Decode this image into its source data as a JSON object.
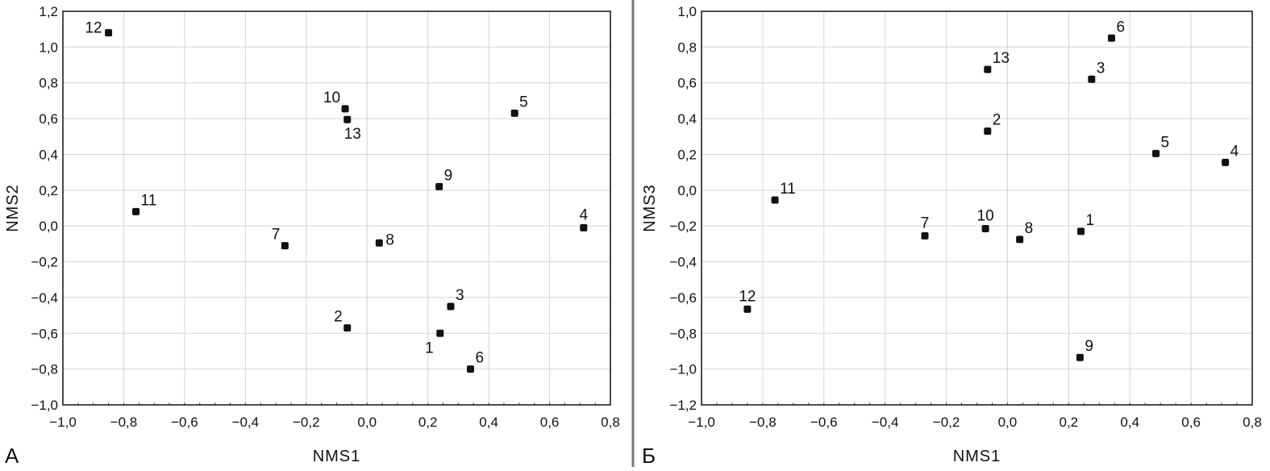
{
  "chart_data": [
    {
      "type": "scatter",
      "panel_label": "А",
      "xlabel": "NMS1",
      "ylabel": "NMS2",
      "xlim": [
        -1.0,
        0.8
      ],
      "ylim": [
        -1.0,
        1.2
      ],
      "xticks": [
        "-1,0",
        "-0,8",
        "-0,6",
        "-0,4",
        "-0,2",
        "0,0",
        "0,2",
        "0,4",
        "0,6",
        "0,8"
      ],
      "yticks": [
        "-1,0",
        "-0,8",
        "-0,6",
        "-0,4",
        "-0,2",
        "0,0",
        "0,2",
        "0,4",
        "0,6",
        "0,8",
        "1,0",
        "1,2"
      ],
      "grid": true,
      "points": [
        {
          "label": "1",
          "x": 0.24,
          "y": -0.6,
          "label_pos": "bottom-left"
        },
        {
          "label": "2",
          "x": -0.065,
          "y": -0.57,
          "label_pos": "top-left"
        },
        {
          "label": "3",
          "x": 0.275,
          "y": -0.45,
          "label_pos": "top-right"
        },
        {
          "label": "4",
          "x": 0.712,
          "y": -0.01,
          "label_pos": "top"
        },
        {
          "label": "5",
          "x": 0.485,
          "y": 0.63,
          "label_pos": "top-right"
        },
        {
          "label": "6",
          "x": 0.34,
          "y": -0.8,
          "label_pos": "top-right"
        },
        {
          "label": "7",
          "x": -0.27,
          "y": -0.11,
          "label_pos": "top-left"
        },
        {
          "label": "8",
          "x": 0.04,
          "y": -0.095,
          "label_pos": "right"
        },
        {
          "label": "9",
          "x": 0.237,
          "y": 0.22,
          "label_pos": "top-right"
        },
        {
          "label": "10",
          "x": -0.072,
          "y": 0.655,
          "label_pos": "top-left"
        },
        {
          "label": "11",
          "x": -0.76,
          "y": 0.08,
          "label_pos": "top-right"
        },
        {
          "label": "12",
          "x": -0.85,
          "y": 1.08,
          "label_pos": "left"
        },
        {
          "label": "13",
          "x": -0.065,
          "y": 0.595,
          "label_pos": "bottom-right"
        }
      ]
    },
    {
      "type": "scatter",
      "panel_label": "Б",
      "xlabel": "NMS1",
      "ylabel": "NMS3",
      "xlim": [
        -1.0,
        0.8
      ],
      "ylim": [
        -1.2,
        1.0
      ],
      "xticks": [
        "-1,0",
        "-0,8",
        "-0,6",
        "-0,4",
        "-0,2",
        "0,0",
        "0,2",
        "0,4",
        "0,6",
        "0,8"
      ],
      "yticks": [
        "-1,2",
        "-1,0",
        "-0,8",
        "-0,6",
        "-0,4",
        "-0,2",
        "0,0",
        "0,2",
        "0,4",
        "0,6",
        "0,8",
        "1,0"
      ],
      "grid": true,
      "points": [
        {
          "label": "1",
          "x": 0.24,
          "y": -0.23,
          "label_pos": "top-right"
        },
        {
          "label": "2",
          "x": -0.065,
          "y": 0.33,
          "label_pos": "top-right"
        },
        {
          "label": "3",
          "x": 0.275,
          "y": 0.62,
          "label_pos": "top-right"
        },
        {
          "label": "4",
          "x": 0.712,
          "y": 0.155,
          "label_pos": "top-right"
        },
        {
          "label": "5",
          "x": 0.485,
          "y": 0.205,
          "label_pos": "top-right"
        },
        {
          "label": "6",
          "x": 0.34,
          "y": 0.85,
          "label_pos": "top-right"
        },
        {
          "label": "7",
          "x": -0.27,
          "y": -0.255,
          "label_pos": "top"
        },
        {
          "label": "8",
          "x": 0.04,
          "y": -0.275,
          "label_pos": "top-right"
        },
        {
          "label": "9",
          "x": 0.237,
          "y": -0.935,
          "label_pos": "top-right"
        },
        {
          "label": "10",
          "x": -0.072,
          "y": -0.215,
          "label_pos": "top"
        },
        {
          "label": "11",
          "x": -0.76,
          "y": -0.055,
          "label_pos": "top-right"
        },
        {
          "label": "12",
          "x": -0.85,
          "y": -0.665,
          "label_pos": "top"
        },
        {
          "label": "13",
          "x": -0.065,
          "y": 0.675,
          "label_pos": "top-right"
        }
      ]
    }
  ]
}
